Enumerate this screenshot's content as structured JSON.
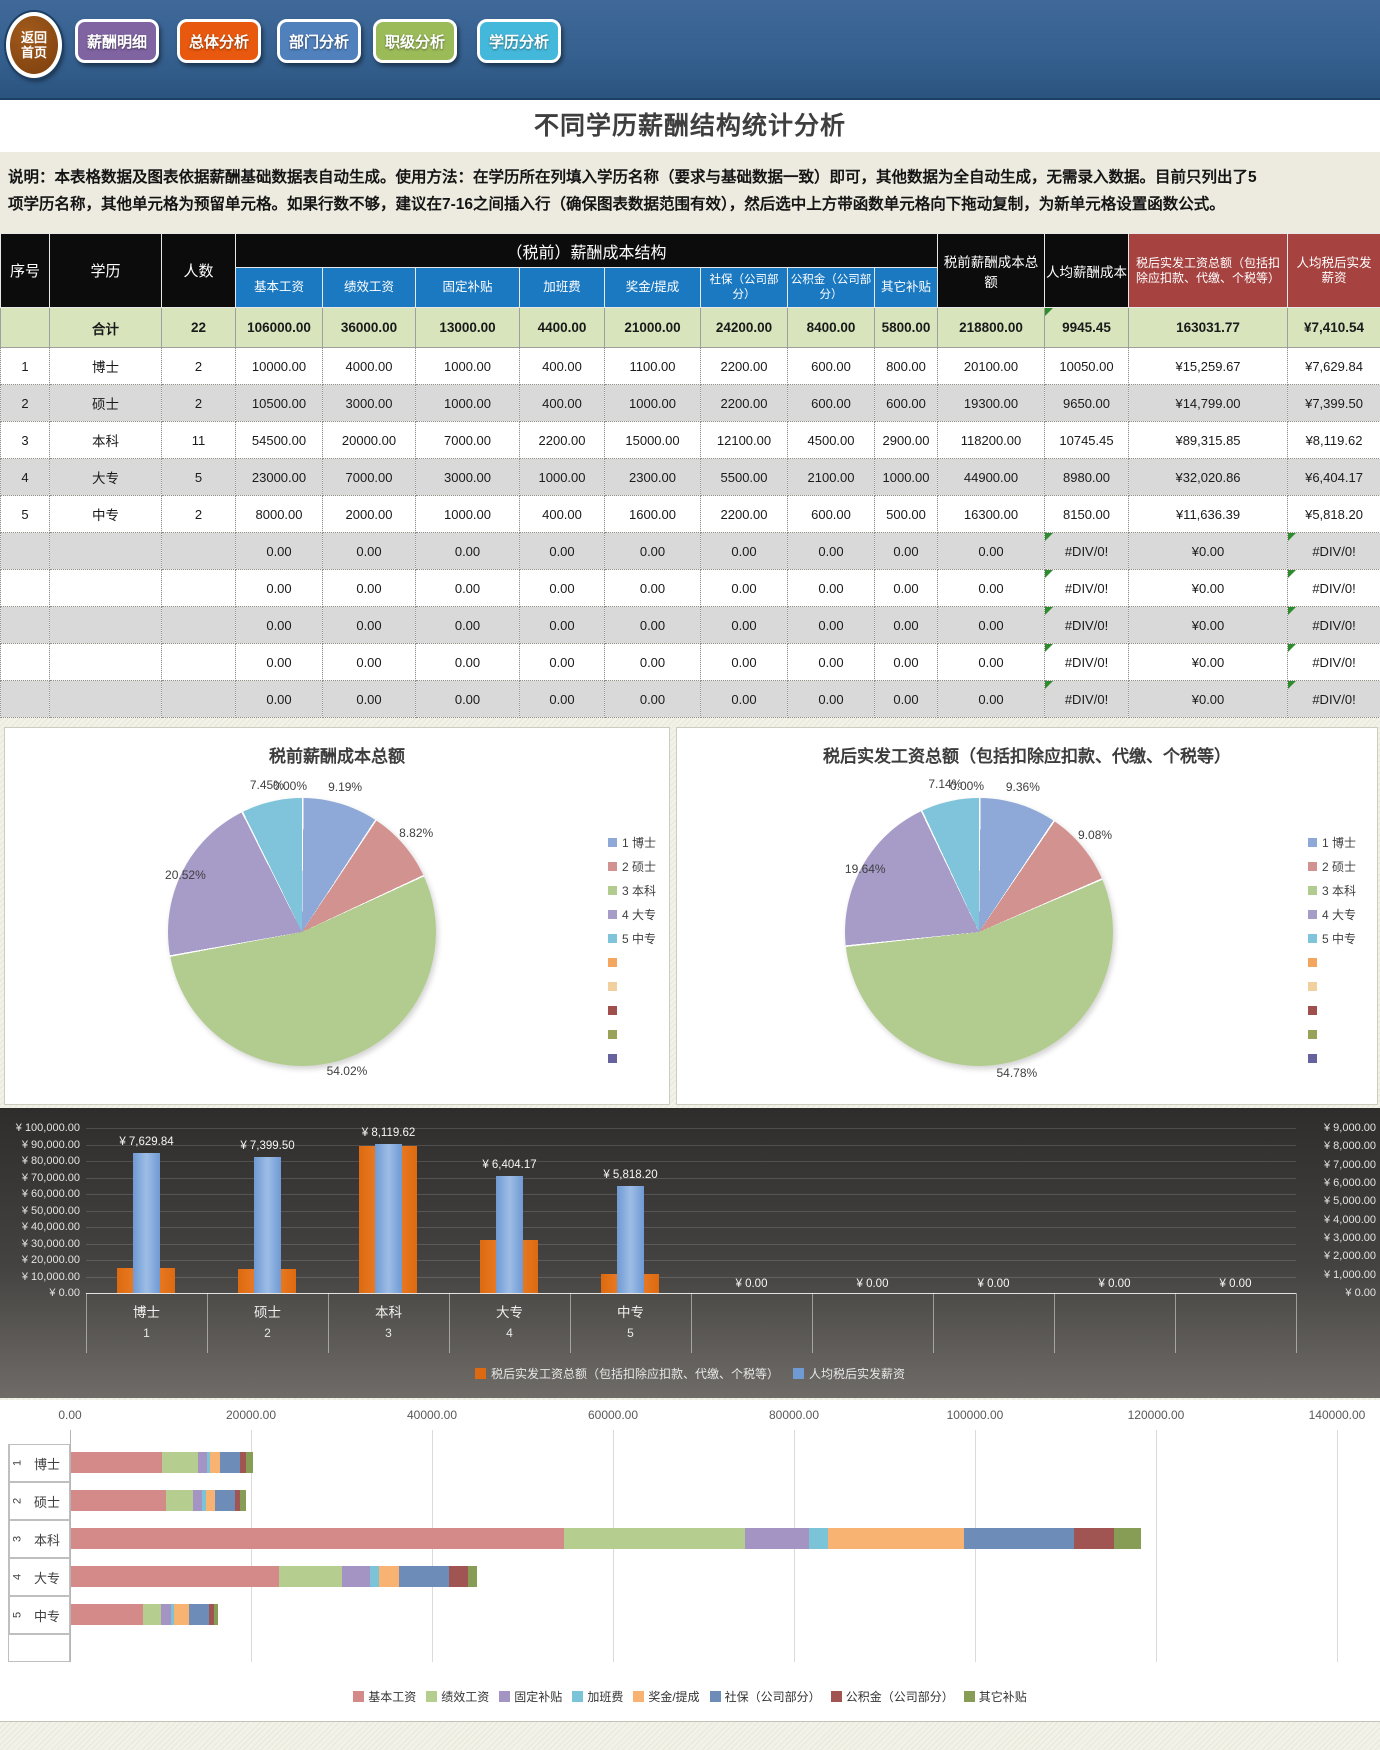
{
  "nav": {
    "home_button": {
      "line1": "返回",
      "line2": "首页"
    },
    "buttons": [
      {
        "label": "薪酬明细",
        "color": "#8064a2"
      },
      {
        "label": "总体分析",
        "color": "#e8580e"
      },
      {
        "label": "部门分析",
        "color": "#5081bd"
      },
      {
        "label": "职级分析",
        "color": "#9bbb59"
      },
      {
        "label": "学历分析",
        "color": "#44b8da"
      }
    ]
  },
  "page_title": "不同学历薪酬结构统计分析",
  "description_line1": "说明：本表格数据及图表依据薪酬基础数据表自动生成。使用方法：在学历所在列填入学历名称（要求与基础数据一致）即可，其他数据为全自动生成，无需录入数据。目前只列出了5",
  "description_line2": "项学历名称，其他单元格为预留单元格。如果行数不够，建议在7-16之间插入行（确保图表数据范围有效），然后选中上方带函数单元格向下拖动复制，为新单元格设置函数公式。",
  "table": {
    "col_no": "序号",
    "col_edu": "学历",
    "col_count": "人数",
    "group_header": "（税前）薪酬成本结构",
    "sub_headers": [
      "基本工资",
      "绩效工资",
      "固定补贴",
      "加班费",
      "奖金/提成",
      "社保（公司部分）",
      "公积金（公司部分）",
      "其它补贴"
    ],
    "col_pretax_total": "税前薪酬成本总额",
    "col_avg_cost": "人均薪酬成本",
    "col_aftertax_total": "税后实发工资总额（包括扣除应扣款、代缴、个税等）",
    "col_avg_aftertax": "人均税后实发薪资",
    "total_row": {
      "no": "",
      "edu": "合计",
      "count": "22",
      "cells": [
        "106000.00",
        "36000.00",
        "13000.00",
        "4400.00",
        "21000.00",
        "24200.00",
        "8400.00",
        "5800.00",
        "218800.00",
        "9945.45",
        "163031.77",
        "¥7,410.54"
      ]
    },
    "rows": [
      {
        "no": "1",
        "edu": "博士",
        "count": "2",
        "cells": [
          "10000.00",
          "4000.00",
          "1000.00",
          "400.00",
          "1100.00",
          "2200.00",
          "600.00",
          "800.00",
          "20100.00",
          "10050.00",
          "¥15,259.67",
          "¥7,629.84"
        ]
      },
      {
        "no": "2",
        "edu": "硕士",
        "count": "2",
        "cells": [
          "10500.00",
          "3000.00",
          "1000.00",
          "400.00",
          "1000.00",
          "2200.00",
          "600.00",
          "600.00",
          "19300.00",
          "9650.00",
          "¥14,799.00",
          "¥7,399.50"
        ]
      },
      {
        "no": "3",
        "edu": "本科",
        "count": "11",
        "cells": [
          "54500.00",
          "20000.00",
          "7000.00",
          "2200.00",
          "15000.00",
          "12100.00",
          "4500.00",
          "2900.00",
          "118200.00",
          "10745.45",
          "¥89,315.85",
          "¥8,119.62"
        ]
      },
      {
        "no": "4",
        "edu": "大专",
        "count": "5",
        "cells": [
          "23000.00",
          "7000.00",
          "3000.00",
          "1000.00",
          "2300.00",
          "5500.00",
          "2100.00",
          "1000.00",
          "44900.00",
          "8980.00",
          "¥32,020.86",
          "¥6,404.17"
        ]
      },
      {
        "no": "5",
        "edu": "中专",
        "count": "2",
        "cells": [
          "8000.00",
          "2000.00",
          "1000.00",
          "400.00",
          "1600.00",
          "2200.00",
          "600.00",
          "500.00",
          "16300.00",
          "8150.00",
          "¥11,636.39",
          "¥5,818.20"
        ]
      }
    ],
    "empty_row_count": 5,
    "empty_row_cells": [
      "0.00",
      "0.00",
      "0.00",
      "0.00",
      "0.00",
      "0.00",
      "0.00",
      "0.00",
      "0.00",
      "#DIV/0!",
      "¥0.00",
      "#DIV/0!"
    ]
  },
  "chart_data": [
    {
      "type": "pie",
      "title": "税前薪酬成本总额",
      "labels": [
        "1 博士",
        "2 硕士",
        "3 本科",
        "4 大专",
        "5 中专"
      ],
      "values": [
        20100,
        19300,
        118200,
        44900,
        16300
      ],
      "pct_labels": [
        "9.19%",
        "8.82%",
        "54.02%",
        "20.52%",
        "7.45%"
      ],
      "zero_label": "0.00%",
      "colors": [
        "#8ea9d8",
        "#d29290",
        "#b2cb8e",
        "#a79bc8",
        "#7fc4da"
      ],
      "extra_legend_colors": [
        "#f3a660",
        "#f2cf9e",
        "#a04f4d",
        "#9aa25a",
        "#66629e"
      ],
      "legend_position": "right"
    },
    {
      "type": "pie",
      "title": "税后实发工资总额（包括扣除应扣款、代缴、个税等）",
      "labels": [
        "1 博士",
        "2 硕士",
        "3 本科",
        "4 大专",
        "5 中专"
      ],
      "values": [
        15259.67,
        14799.0,
        89315.85,
        32020.86,
        11636.39
      ],
      "pct_labels": [
        "9.36%",
        "9.08%",
        "54.78%",
        "19.64%",
        "7.14%"
      ],
      "zero_label": "0.00%",
      "colors": [
        "#8ea9d8",
        "#d29290",
        "#b2cb8e",
        "#a79bc8",
        "#7fc4da"
      ],
      "extra_legend_colors": [
        "#f3a660",
        "#f2cf9e",
        "#a04f4d",
        "#9aa25a",
        "#66629e"
      ],
      "legend_position": "right"
    },
    {
      "type": "bar",
      "subtype": "combo-column",
      "categories": [
        "博士",
        "硕士",
        "本科",
        "大专",
        "中专",
        "",
        "",
        "",
        "",
        ""
      ],
      "category_numbers": [
        "1",
        "2",
        "3",
        "4",
        "5",
        "",
        "",
        "",
        "",
        ""
      ],
      "series": [
        {
          "name": "税后实发工资总额（包括扣除应扣款、代缴、个税等）",
          "axis": "left",
          "color": "#dd6a10",
          "values": [
            15259.67,
            14799.0,
            89315.85,
            32020.86,
            11636.39,
            0,
            0,
            0,
            0,
            0
          ]
        },
        {
          "name": "人均税后实发薪资",
          "axis": "right",
          "color": "#6f9ad3",
          "values": [
            7629.84,
            7399.5,
            8119.62,
            6404.17,
            5818.2,
            0,
            0,
            0,
            0,
            0
          ]
        }
      ],
      "data_labels": [
        "¥ 7,629.84",
        "¥ 7,399.50",
        "¥ 8,119.62",
        "¥ 6,404.17",
        "¥ 5,818.20",
        "¥ 0.00",
        "¥ 0.00",
        "¥ 0.00",
        "¥ 0.00",
        "¥ 0.00"
      ],
      "left_axis_ticks": [
        "¥ 100,000.00",
        "¥ 90,000.00",
        "¥ 80,000.00",
        "¥ 70,000.00",
        "¥ 60,000.00",
        "¥ 50,000.00",
        "¥ 40,000.00",
        "¥ 30,000.00",
        "¥ 20,000.00",
        "¥ 10,000.00",
        "¥ 0.00"
      ],
      "right_axis_ticks": [
        "¥ 9,000.00",
        "¥ 8,000.00",
        "¥ 7,000.00",
        "¥ 6,000.00",
        "¥ 5,000.00",
        "¥ 4,000.00",
        "¥ 3,000.00",
        "¥ 2,000.00",
        "¥ 1,000.00",
        "¥ 0.00"
      ],
      "left_axis_max": 100000,
      "right_axis_max": 9000,
      "grid": true,
      "legend_position": "bottom"
    },
    {
      "type": "bar",
      "subtype": "stacked-horizontal",
      "categories": [
        "博士",
        "硕士",
        "本科",
        "大专",
        "中专"
      ],
      "category_numbers": [
        "1",
        "2",
        "3",
        "4",
        "5"
      ],
      "x_axis_ticks": [
        "0.00",
        "20000.00",
        "40000.00",
        "60000.00",
        "80000.00",
        "100000.00",
        "120000.00",
        "140000.00"
      ],
      "x_max": 140000,
      "series": [
        {
          "name": "基本工资",
          "color": "#d48a88",
          "values": [
            10000,
            10500,
            54500,
            23000,
            8000
          ]
        },
        {
          "name": "绩效工资",
          "color": "#b5cd8e",
          "values": [
            4000,
            3000,
            20000,
            7000,
            2000
          ]
        },
        {
          "name": "固定补贴",
          "color": "#a394c4",
          "values": [
            1000,
            1000,
            7000,
            3000,
            1000
          ]
        },
        {
          "name": "加班费",
          "color": "#7bc4d8",
          "values": [
            400,
            400,
            2200,
            1000,
            400
          ]
        },
        {
          "name": "奖金/提成",
          "color": "#f8b271",
          "values": [
            1100,
            1000,
            15000,
            2300,
            1600
          ]
        },
        {
          "name": "社保（公司部分）",
          "color": "#6d8db8",
          "values": [
            2200,
            2200,
            12100,
            5500,
            2200
          ]
        },
        {
          "name": "公积金（公司部分）",
          "color": "#a05553",
          "values": [
            600,
            600,
            4500,
            2100,
            600
          ]
        },
        {
          "name": "其它补贴",
          "color": "#879c55",
          "values": [
            800,
            600,
            2900,
            1000,
            500
          ]
        }
      ],
      "grid": true,
      "legend_position": "bottom"
    }
  ]
}
